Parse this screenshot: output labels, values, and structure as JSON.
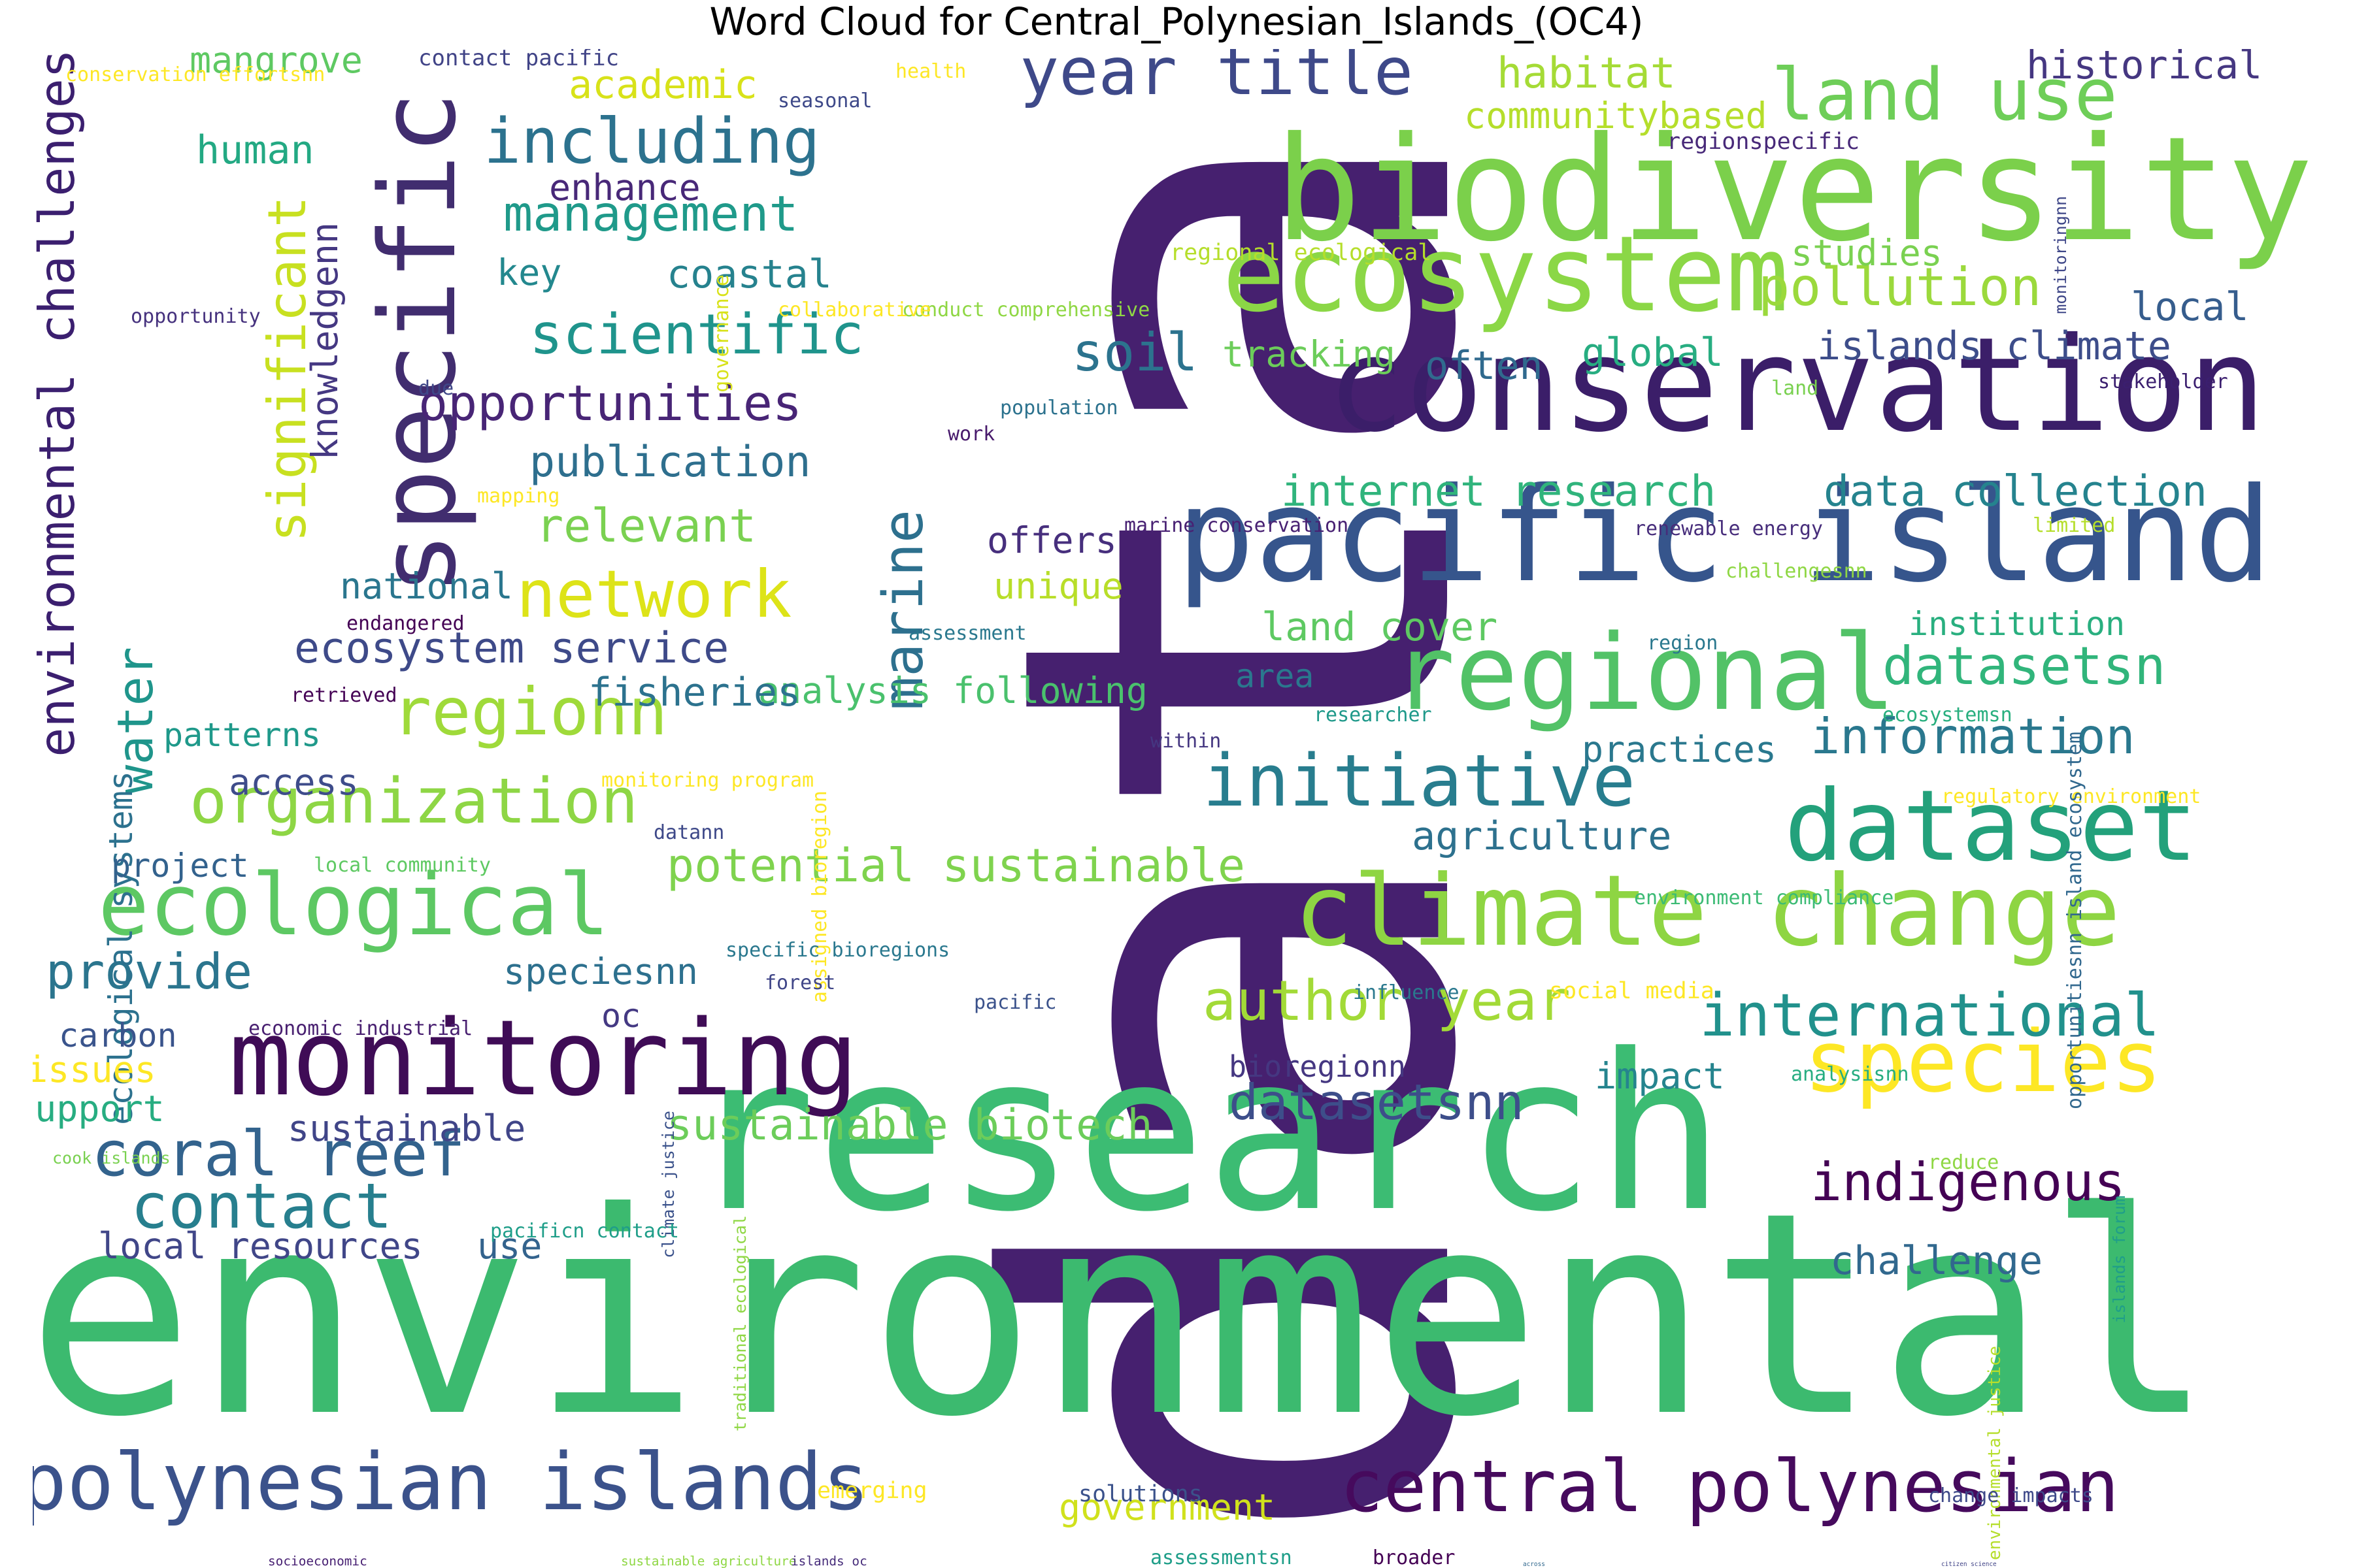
{
  "title": "Word Cloud for Central_Polynesian_Islands_(OC4)",
  "words": [
    {
      "text": "data",
      "color": "#46206f"
    },
    {
      "text": "environmental",
      "color": "#3cba6f"
    },
    {
      "text": "research",
      "color": "#3cbc73"
    },
    {
      "text": "pacific island",
      "color": "#36558c"
    },
    {
      "text": "conservation",
      "color": "#3b1e69"
    },
    {
      "text": "biodiversity",
      "color": "#7bd04b"
    },
    {
      "text": "ecosystem",
      "color": "#8bd746"
    },
    {
      "text": "regional",
      "color": "#52c267"
    },
    {
      "text": "monitoring",
      "color": "#3f0c56"
    },
    {
      "text": "specific",
      "color": "#412d6f"
    },
    {
      "text": "climate change",
      "color": "#8ed543"
    },
    {
      "text": "dataset",
      "color": "#23a17b"
    },
    {
      "text": "polynesian islands",
      "color": "#3b528b"
    },
    {
      "text": "central polynesian",
      "color": "#460a5d"
    },
    {
      "text": "species",
      "color": "#fde725"
    },
    {
      "text": "ecological",
      "color": "#5dc863"
    },
    {
      "text": "initiative",
      "color": "#287d8e"
    },
    {
      "text": "land use",
      "color": "#6ece58"
    },
    {
      "text": "year title",
      "color": "#3e4989"
    },
    {
      "text": "including",
      "color": "#2c728e"
    },
    {
      "text": "regionn",
      "color": "#9fda3a"
    },
    {
      "text": "network",
      "color": "#dde318"
    },
    {
      "text": "marine",
      "color": "#2d708e"
    },
    {
      "text": "significant",
      "color": "#c8e020"
    },
    {
      "text": "environmental challenges",
      "color": "#3b1f6f"
    },
    {
      "text": "organization",
      "color": "#8ed645"
    },
    {
      "text": "coral reef",
      "color": "#33638d"
    },
    {
      "text": "contact",
      "color": "#277f8e"
    },
    {
      "text": "international",
      "color": "#21918c"
    },
    {
      "text": "indigenous",
      "color": "#440154"
    },
    {
      "text": "author year",
      "color": "#a2da37"
    },
    {
      "text": "datasetsnn",
      "color": "#3d4e8a"
    },
    {
      "text": "information",
      "color": "#2a788e"
    },
    {
      "text": "scientific",
      "color": "#1f948c"
    },
    {
      "text": "opportunities",
      "color": "#482576"
    },
    {
      "text": "management",
      "color": "#1f9a8a"
    },
    {
      "text": "water",
      "color": "#1f958b"
    },
    {
      "text": "pollution",
      "color": "#9bd93c"
    },
    {
      "text": "soil",
      "color": "#2c738e"
    },
    {
      "text": "potential sustainable",
      "color": "#7fd34e"
    },
    {
      "text": "provide",
      "color": "#2b758e"
    },
    {
      "text": "sustainable biotech",
      "color": "#6ccd5a"
    },
    {
      "text": "datasetsn",
      "color": "#31b57b"
    },
    {
      "text": "relevant",
      "color": "#7ad151"
    },
    {
      "text": "publication",
      "color": "#2e6f8e"
    },
    {
      "text": "ecosystem service",
      "color": "#3e4a89"
    },
    {
      "text": "analysis following",
      "color": "#4ac16d"
    },
    {
      "text": "ecological systems",
      "color": "#2c718e"
    },
    {
      "text": "local resources",
      "color": "#404688"
    },
    {
      "text": "habitat",
      "color": "#a5db36"
    },
    {
      "text": "historical",
      "color": "#453781"
    },
    {
      "text": "communitybased",
      "color": "#b5de2b"
    },
    {
      "text": "internet research",
      "color": "#30b47c"
    },
    {
      "text": "data collection",
      "color": "#25838e"
    },
    {
      "text": "land cover",
      "color": "#5ec962"
    },
    {
      "text": "agriculture",
      "color": "#2d718e"
    },
    {
      "text": "islands climate",
      "color": "#3d4d8a"
    },
    {
      "text": "global",
      "color": "#27ad81"
    },
    {
      "text": "often",
      "color": "#306a8e"
    },
    {
      "text": "tracking",
      "color": "#6ccd5a"
    },
    {
      "text": "studies",
      "color": "#7ad151"
    },
    {
      "text": "local",
      "color": "#365d8d"
    },
    {
      "text": "coastal",
      "color": "#26828e"
    },
    {
      "text": "key",
      "color": "#23888e"
    },
    {
      "text": "enhance",
      "color": "#482878"
    },
    {
      "text": "human",
      "color": "#23a983"
    },
    {
      "text": "mangrove",
      "color": "#5ec962"
    },
    {
      "text": "academic",
      "color": "#d8e219"
    },
    {
      "text": "knowledgenn",
      "color": "#453882"
    },
    {
      "text": "national",
      "color": "#2a768e"
    },
    {
      "text": "fisheries",
      "color": "#2c728e"
    },
    {
      "text": "patterns",
      "color": "#1f998a"
    },
    {
      "text": "access",
      "color": "#3e4c8a"
    },
    {
      "text": "project",
      "color": "#33628d"
    },
    {
      "text": "carbon",
      "color": "#3a548c"
    },
    {
      "text": "issues",
      "color": "#fde725"
    },
    {
      "text": "support",
      "color": "#27ad81"
    },
    {
      "text": "sustainable",
      "color": "#404588"
    },
    {
      "text": "speciesnn",
      "color": "#2d708e"
    },
    {
      "text": "oc",
      "color": "#443983"
    },
    {
      "text": "use",
      "color": "#33638d"
    },
    {
      "text": "offers",
      "color": "#472f7d"
    },
    {
      "text": "unique",
      "color": "#b8de29"
    },
    {
      "text": "area",
      "color": "#2a788e"
    },
    {
      "text": "practices",
      "color": "#2a788e"
    },
    {
      "text": "institution",
      "color": "#29af7f"
    },
    {
      "text": "bioregionn",
      "color": "#453781"
    },
    {
      "text": "impact",
      "color": "#25848e"
    },
    {
      "text": "challenge",
      "color": "#31688e"
    },
    {
      "text": "government",
      "color": "#d0e11c"
    },
    {
      "text": "contact pacific",
      "color": "#414487"
    },
    {
      "text": "health",
      "color": "#fde725"
    },
    {
      "text": "seasonal",
      "color": "#3e4989"
    },
    {
      "text": "regionspecific",
      "color": "#482979"
    },
    {
      "text": "regional ecological",
      "color": "#b5de2b"
    },
    {
      "text": "conduct comprehensive",
      "color": "#8fd744"
    },
    {
      "text": "collaborative",
      "color": "#fde725"
    },
    {
      "text": "opportunity",
      "color": "#46327e"
    },
    {
      "text": "due",
      "color": "#3f4788"
    },
    {
      "text": "governance",
      "color": "#d8e219"
    },
    {
      "text": "population",
      "color": "#2c728e"
    },
    {
      "text": "work",
      "color": "#481a6c"
    },
    {
      "text": "land",
      "color": "#7ad151"
    },
    {
      "text": "stakeholder",
      "color": "#3b1f6f"
    },
    {
      "text": "monitoringnn",
      "color": "#3f4788"
    },
    {
      "text": "mapping",
      "color": "#fde725"
    },
    {
      "text": "marine conservation",
      "color": "#482173"
    },
    {
      "text": "renewable energy",
      "color": "#472d7b"
    },
    {
      "text": "limited",
      "color": "#b5de2b"
    },
    {
      "text": "challengesnn",
      "color": "#8fd744"
    },
    {
      "text": "region",
      "color": "#2a788e"
    },
    {
      "text": "ecosystemsn",
      "color": "#29af7f"
    },
    {
      "text": "regulatory environment",
      "color": "#fde725"
    },
    {
      "text": "endangered",
      "color": "#440154"
    },
    {
      "text": "retrieved",
      "color": "#440154"
    },
    {
      "text": "assessment",
      "color": "#2a788e"
    },
    {
      "text": "researcher",
      "color": "#1f998a"
    },
    {
      "text": "within",
      "color": "#453781"
    },
    {
      "text": "monitoring program",
      "color": "#fde725"
    },
    {
      "text": "local community",
      "color": "#5ec962"
    },
    {
      "text": "assigned bioregion",
      "color": "#fde725"
    },
    {
      "text": "datann",
      "color": "#3e4989"
    },
    {
      "text": "environment compliance",
      "color": "#3cbb75"
    },
    {
      "text": "opportunitiesnn island ecosystem",
      "color": "#31688e"
    },
    {
      "text": "specific bioregions",
      "color": "#2a788e"
    },
    {
      "text": "forest",
      "color": "#404688"
    },
    {
      "text": "pacific",
      "color": "#3b528b"
    },
    {
      "text": "influence",
      "color": "#2a788e"
    },
    {
      "text": "social media",
      "color": "#fde725"
    },
    {
      "text": "economic industrial",
      "color": "#481f70"
    },
    {
      "text": "analysisnn",
      "color": "#27ad81"
    },
    {
      "text": "cook islands",
      "color": "#7ad151"
    },
    {
      "text": "climate justice",
      "color": "#3b528b"
    },
    {
      "text": "reduce",
      "color": "#8fd744"
    },
    {
      "text": "pacificn contact",
      "color": "#1f9e89"
    },
    {
      "text": "islands forum",
      "color": "#1f9e89"
    },
    {
      "text": "traditional ecological",
      "color": "#8fd744"
    },
    {
      "text": "environmental justice",
      "color": "#b5de2b"
    },
    {
      "text": "emerging",
      "color": "#fde725"
    },
    {
      "text": "solutions",
      "color": "#3b528b"
    },
    {
      "text": "change impacts",
      "color": "#3e4989"
    },
    {
      "text": "socioeconomic",
      "color": "#482173"
    },
    {
      "text": "sustainable agriculture",
      "color": "#8fd744"
    },
    {
      "text": "islands oc",
      "color": "#472d7b"
    },
    {
      "text": "assessmentsn",
      "color": "#1f9e89"
    },
    {
      "text": "broader",
      "color": "#440154"
    },
    {
      "text": "across",
      "color": "#31688e"
    },
    {
      "text": "citizen science",
      "color": "#414487"
    },
    {
      "text": "conservation effortsnn",
      "color": "#fde725"
    }
  ]
}
